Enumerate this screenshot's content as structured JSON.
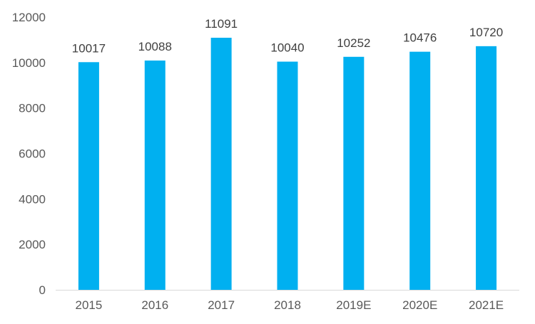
{
  "chart_data": {
    "type": "bar",
    "categories": [
      "2015",
      "2016",
      "2017",
      "2018",
      "2019E",
      "2020E",
      "2021E"
    ],
    "values": [
      10017,
      10088,
      11091,
      10040,
      10252,
      10476,
      10720
    ],
    "data_labels": [
      "10017",
      "10088",
      "11091",
      "10040",
      "10252",
      "10476",
      "10720"
    ],
    "y_ticks": [
      0,
      2000,
      4000,
      6000,
      8000,
      10000,
      12000
    ],
    "y_tick_labels": [
      "0",
      "2000",
      "4000",
      "6000",
      "8000",
      "10000",
      "12000"
    ],
    "ylim": [
      0,
      12000
    ],
    "grid": false,
    "legend": "none",
    "bar_color": "#00B0F0",
    "title": "",
    "xlabel": "",
    "ylabel": ""
  }
}
